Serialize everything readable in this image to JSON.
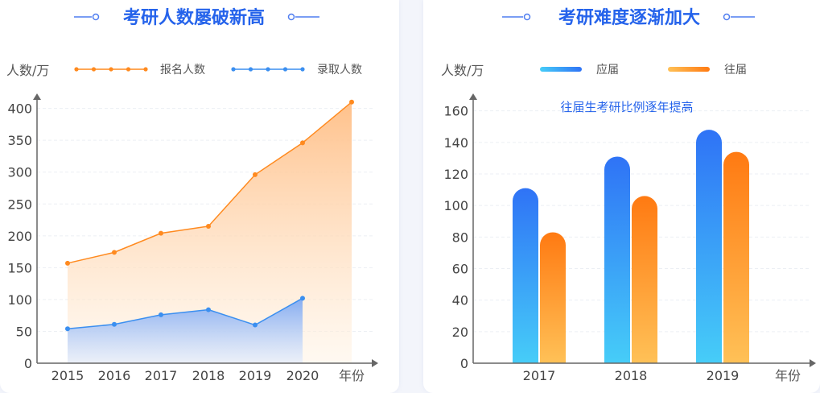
{
  "chart_data": [
    {
      "type": "area",
      "title": "考研人数屡破新高",
      "ylabel": "人数/万",
      "xlabel": "年份",
      "ylim": [
        0,
        420
      ],
      "yticks": [
        0,
        50,
        100,
        150,
        200,
        250,
        300,
        350,
        400
      ],
      "categories": [
        "2015",
        "2016",
        "2017",
        "2018",
        "2019",
        "2020"
      ],
      "series": [
        {
          "name": "报名人数",
          "color": "#ff8a1f",
          "x": [
            "2015",
            "2016",
            "2017",
            "2018",
            "2019",
            "2020",
            "2021"
          ],
          "values": [
            157,
            174,
            204,
            215,
            296,
            346,
            410
          ]
        },
        {
          "name": "录取人数",
          "color": "#3b8ff0",
          "x": [
            "2015",
            "2016",
            "2017",
            "2018",
            "2019",
            "2020"
          ],
          "values": [
            54,
            61,
            76,
            84,
            60,
            102
          ]
        }
      ],
      "legend_position": "top"
    },
    {
      "type": "bar",
      "title": "考研难度逐渐加大",
      "ylabel": "人数/万",
      "xlabel": "年份",
      "annotation": "往届生考研比例逐年提高",
      "ylim": [
        0,
        170
      ],
      "yticks": [
        0,
        20,
        40,
        60,
        80,
        100,
        120,
        140,
        160
      ],
      "categories": [
        "2017",
        "2018",
        "2019"
      ],
      "series": [
        {
          "name": "应届",
          "color": "#2f7df6",
          "values": [
            111,
            131,
            148
          ]
        },
        {
          "name": "往届",
          "color": "#ff8a1f",
          "values": [
            83,
            106,
            134
          ]
        }
      ],
      "legend_position": "top"
    }
  ]
}
